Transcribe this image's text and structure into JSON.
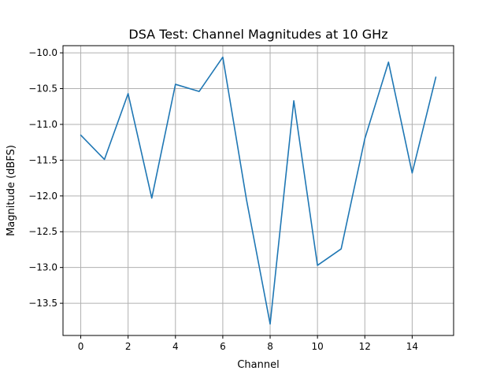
{
  "chart_data": {
    "type": "line",
    "title": "DSA Test: Channel Magnitudes at 10 GHz",
    "xlabel": "Channel",
    "ylabel": "Magnitude (dBFS)",
    "xlim": [
      -0.75,
      15.75
    ],
    "ylim": [
      -13.95,
      -9.9
    ],
    "xticks": [
      0,
      2,
      4,
      6,
      8,
      10,
      12,
      14
    ],
    "xtick_labels": [
      "0",
      "2",
      "4",
      "6",
      "8",
      "10",
      "12",
      "14"
    ],
    "yticks": [
      -10.0,
      -10.5,
      -11.0,
      -11.5,
      -12.0,
      -12.5,
      -13.0,
      -13.5
    ],
    "ytick_labels": [
      "−10.0",
      "−10.5",
      "−11.0",
      "−11.5",
      "−12.0",
      "−12.5",
      "−13.0",
      "−13.5"
    ],
    "grid": true,
    "series": [
      {
        "color": "#1f77b4",
        "x": [
          0,
          1,
          2,
          3,
          4,
          5,
          6,
          7,
          8,
          9,
          10,
          11,
          12,
          13,
          14,
          15
        ],
        "y": [
          -11.15,
          -11.49,
          -10.57,
          -12.03,
          -10.44,
          -10.54,
          -10.06,
          -12.05,
          -13.79,
          -10.67,
          -12.97,
          -12.74,
          -11.2,
          -10.13,
          -11.68,
          -10.34
        ]
      }
    ]
  }
}
